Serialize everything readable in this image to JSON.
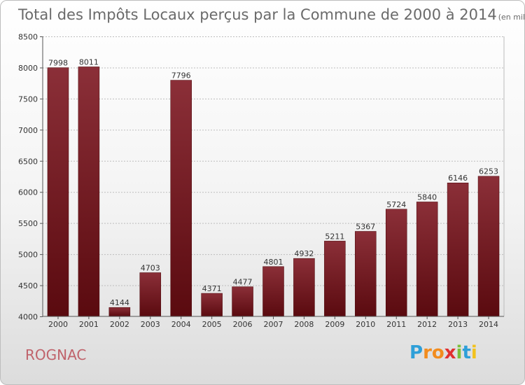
{
  "chart_data": {
    "type": "bar",
    "title": "Total des Impôts Locaux perçus par la Commune de 2000 à 2014",
    "title_unit": "(en milliers d'€)",
    "categories": [
      "2000",
      "2001",
      "2002",
      "2003",
      "2004",
      "2005",
      "2006",
      "2007",
      "2008",
      "2009",
      "2010",
      "2011",
      "2012",
      "2013",
      "2014"
    ],
    "values": [
      7998,
      8011,
      4144,
      4703,
      7796,
      4371,
      4477,
      4801,
      4932,
      5211,
      5367,
      5724,
      5840,
      6146,
      6253
    ],
    "yticks": [
      "4000",
      "4500",
      "5000",
      "5500",
      "6000",
      "6500",
      "7000",
      "7500",
      "8000",
      "8500"
    ],
    "ylim": [
      4000,
      8500
    ],
    "grid": true,
    "bar_color_top": "#8b2f38",
    "bar_color_bottom": "#5a0a0f"
  },
  "footer": {
    "commune": "ROGNAC",
    "brand_letters": [
      "P",
      "r",
      "o",
      "x",
      "i",
      "t",
      "i"
    ],
    "brand_colors": [
      "#2e9fd8",
      "#f28c1e",
      "#f28c1e",
      "#e03030",
      "#7cbf3a",
      "#2e9fd8",
      "#f2c21e"
    ]
  }
}
